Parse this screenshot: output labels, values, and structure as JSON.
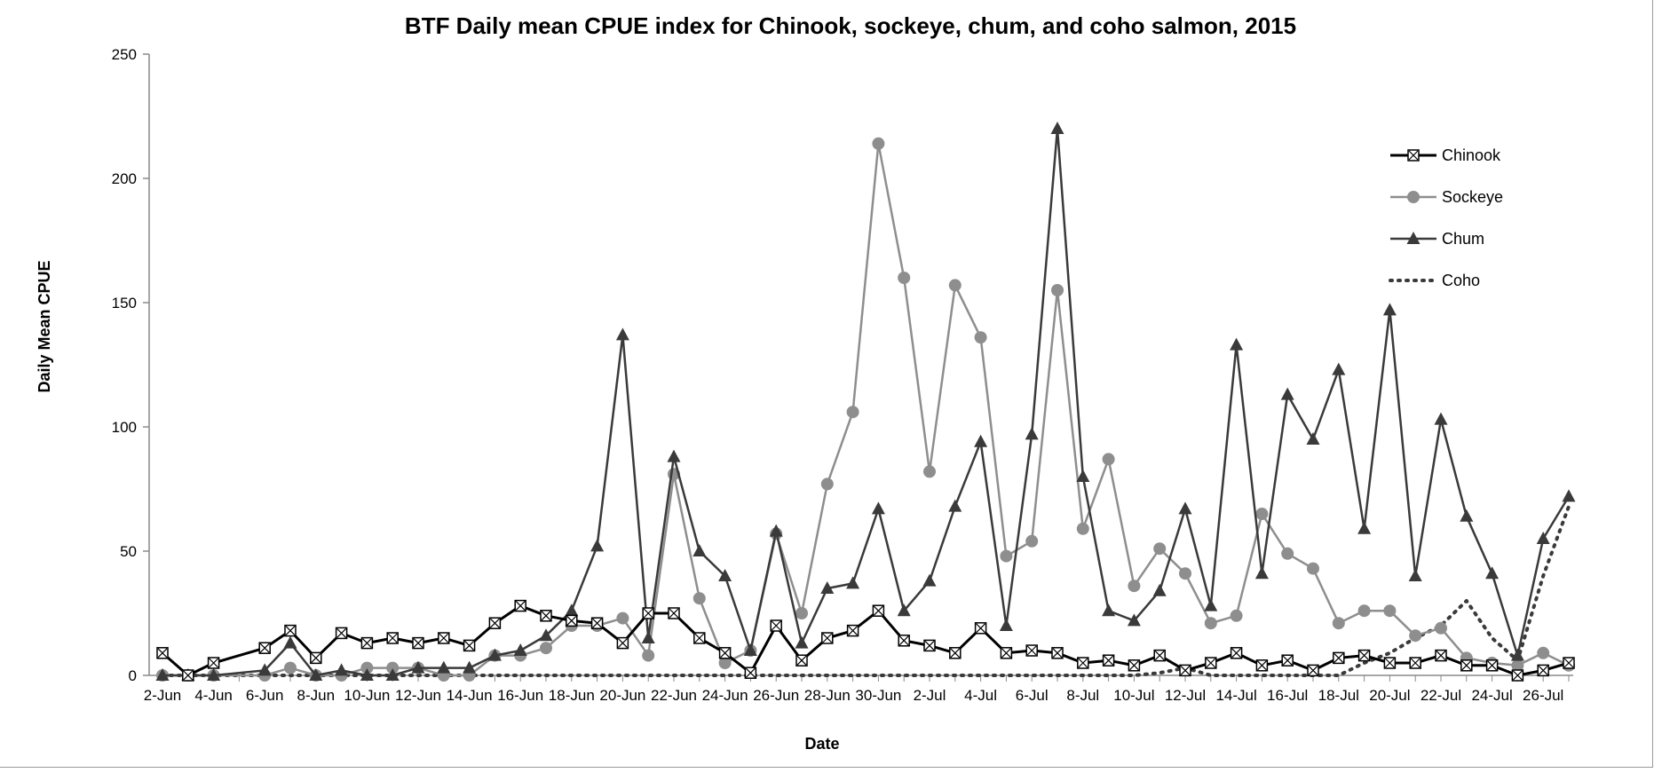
{
  "chart_data": {
    "type": "line",
    "title": "BTF Daily mean CPUE index for Chinook, sockeye, chum, and coho salmon, 2015",
    "xlabel": "Date",
    "ylabel": "Daily Mean CPUE",
    "ylim": [
      0,
      250
    ],
    "yticks": [
      0,
      50,
      100,
      150,
      200,
      250
    ],
    "x": [
      "2-Jun",
      "3-Jun",
      "4-Jun",
      "5-Jun",
      "6-Jun",
      "7-Jun",
      "8-Jun",
      "9-Jun",
      "10-Jun",
      "11-Jun",
      "12-Jun",
      "13-Jun",
      "14-Jun",
      "15-Jun",
      "16-Jun",
      "17-Jun",
      "18-Jun",
      "19-Jun",
      "20-Jun",
      "21-Jun",
      "22-Jun",
      "23-Jun",
      "24-Jun",
      "25-Jun",
      "26-Jun",
      "27-Jun",
      "28-Jun",
      "29-Jun",
      "30-Jun",
      "1-Jul",
      "2-Jul",
      "3-Jul",
      "4-Jul",
      "5-Jul",
      "6-Jul",
      "7-Jul",
      "8-Jul",
      "9-Jul",
      "10-Jul",
      "11-Jul",
      "12-Jul",
      "13-Jul",
      "14-Jul",
      "15-Jul",
      "16-Jul",
      "17-Jul",
      "18-Jul",
      "19-Jul",
      "20-Jul",
      "21-Jul",
      "22-Jul",
      "23-Jul",
      "24-Jul",
      "25-Jul",
      "26-Jul",
      "27-Jul"
    ],
    "xtick_labels": [
      "2-Jun",
      "4-Jun",
      "6-Jun",
      "8-Jun",
      "10-Jun",
      "12-Jun",
      "14-Jun",
      "16-Jun",
      "18-Jun",
      "20-Jun",
      "22-Jun",
      "24-Jun",
      "26-Jun",
      "28-Jun",
      "30-Jun",
      "2-Jul",
      "4-Jul",
      "6-Jul",
      "8-Jul",
      "10-Jul",
      "12-Jul",
      "14-Jul",
      "16-Jul",
      "18-Jul",
      "20-Jul",
      "22-Jul",
      "24-Jul",
      "26-Jul"
    ],
    "legend_position": "top-right",
    "grid": false,
    "series": [
      {
        "name": "Chinook",
        "color": "#000000",
        "marker": "boxed-x",
        "dash": "",
        "width": 3,
        "values": [
          9,
          0,
          5,
          null,
          11,
          18,
          7,
          17,
          13,
          15,
          13,
          15,
          12,
          21,
          28,
          24,
          22,
          21,
          13,
          25,
          25,
          15,
          9,
          1,
          20,
          6,
          15,
          18,
          26,
          14,
          12,
          9,
          19,
          9,
          10,
          9,
          5,
          6,
          4,
          8,
          2,
          5,
          9,
          4,
          6,
          2,
          7,
          8,
          5,
          5,
          8,
          4,
          4,
          0,
          2,
          5
        ]
      },
      {
        "name": "Sockeye",
        "color": "#8e8e8e",
        "marker": "circle",
        "dash": "",
        "width": 2.5,
        "values": [
          0,
          0,
          0,
          null,
          0,
          3,
          0,
          0,
          3,
          3,
          3,
          0,
          0,
          8,
          8,
          11,
          20,
          20,
          23,
          8,
          81,
          31,
          5,
          10,
          57,
          25,
          77,
          106,
          214,
          160,
          82,
          157,
          136,
          48,
          54,
          155,
          59,
          87,
          36,
          51,
          41,
          21,
          24,
          65,
          49,
          43,
          21,
          26,
          26,
          16,
          19,
          7,
          5,
          4,
          9,
          4
        ]
      },
      {
        "name": "Chum",
        "color": "#3a3a3a",
        "marker": "triangle",
        "dash": "",
        "width": 2.5,
        "values": [
          0,
          0,
          0,
          null,
          2,
          13,
          0,
          2,
          0,
          0,
          3,
          3,
          3,
          8,
          10,
          16,
          26,
          52,
          137,
          15,
          88,
          50,
          40,
          10,
          58,
          13,
          35,
          37,
          67,
          26,
          38,
          68,
          94,
          20,
          97,
          220,
          80,
          26,
          22,
          34,
          67,
          28,
          133,
          41,
          113,
          95,
          123,
          59,
          147,
          40,
          103,
          64,
          41,
          8,
          55,
          72
        ]
      },
      {
        "name": "Coho",
        "color": "#3a3a3a",
        "marker": "none",
        "dash": "2 7",
        "width": 4,
        "values": [
          0,
          0,
          0,
          null,
          0,
          0,
          0,
          0,
          0,
          0,
          0,
          0,
          0,
          0,
          0,
          0,
          0,
          0,
          0,
          0,
          0,
          0,
          0,
          0,
          0,
          0,
          0,
          0,
          0,
          0,
          0,
          0,
          0,
          0,
          0,
          0,
          0,
          0,
          0,
          1,
          3,
          0,
          0,
          0,
          0,
          0,
          0,
          5,
          9,
          15,
          20,
          30,
          15,
          6,
          40,
          68
        ]
      }
    ]
  }
}
